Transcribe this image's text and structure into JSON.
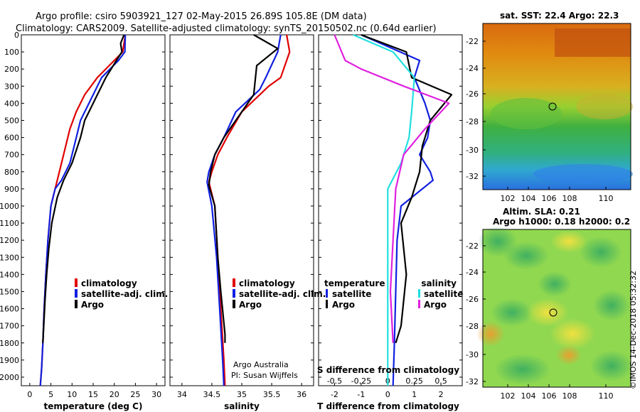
{
  "header": {
    "title_line1": "Argo profile: csiro 5903921_127 02-May-2015 26.89S 105.8E (DM data)",
    "title_line2": "Climatology: CARS2009. Satellite-adjusted climatology: synTS_20150502.nc (0.64d earlier)"
  },
  "colors": {
    "climatology": "#e00000",
    "satellite": "#1020e0",
    "argo": "#000000",
    "sat_salinity": "#20e0e0",
    "argo_salinity": "#e020e0"
  },
  "depth_axis": {
    "ticks": [
      "0",
      "100",
      "200",
      "300",
      "400",
      "500",
      "600",
      "700",
      "800",
      "900",
      "1000",
      "1100",
      "1200",
      "1300",
      "1400",
      "1500",
      "1600",
      "1700",
      "1800",
      "1900",
      "2000"
    ]
  },
  "chart_data": [
    {
      "type": "line",
      "xlabel": "temperature (deg C)",
      "xlim": [
        -2,
        32
      ],
      "ylim": [
        0,
        2050
      ],
      "xticks": [
        "0",
        "5",
        "10",
        "15",
        "20",
        "25",
        "30"
      ],
      "legend": [
        "climatology",
        "satellite-adj. clim.",
        "Argo"
      ],
      "series": [
        {
          "name": "climatology",
          "color": "#e00000",
          "x": [
            22.6,
            22,
            20,
            16,
            13,
            11,
            9.5,
            8.5,
            7,
            6,
            5,
            4.3,
            3.8,
            3.4,
            3.1,
            2.8,
            2.5
          ],
          "depth": [
            0,
            100,
            150,
            250,
            350,
            450,
            550,
            650,
            800,
            900,
            1000,
            1200,
            1400,
            1600,
            1800,
            1950,
            2050
          ]
        },
        {
          "name": "satellite-adj. clim.",
          "color": "#1020e0",
          "x": [
            22.6,
            22.5,
            21,
            17,
            14,
            12,
            10.5,
            9.5,
            7.5,
            6,
            5,
            4.3,
            3.8,
            3.4,
            3.1,
            2.8,
            2.5
          ],
          "depth": [
            0,
            100,
            150,
            250,
            400,
            500,
            650,
            750,
            850,
            900,
            1000,
            1200,
            1400,
            1600,
            1800,
            1950,
            2050
          ]
        },
        {
          "name": "Argo",
          "color": "#000000",
          "x": [
            22.3,
            21.5,
            21.8,
            20.5,
            18,
            15,
            13,
            12,
            10,
            8,
            6.5,
            5.2,
            4.5,
            4,
            3.6,
            3.3,
            3.1
          ],
          "depth": [
            0,
            50,
            100,
            150,
            250,
            400,
            500,
            600,
            750,
            850,
            950,
            1100,
            1250,
            1400,
            1550,
            1700,
            1800
          ]
        }
      ]
    },
    {
      "type": "line",
      "xlabel": "salinity",
      "xlim": [
        33.8,
        36.2
      ],
      "ylim": [
        0,
        2050
      ],
      "xticks": [
        "34",
        "34.5",
        "35",
        "35.5",
        "36"
      ],
      "legend": [
        "climatology",
        "satellite-adj. clim.",
        "Argo"
      ],
      "series": [
        {
          "name": "climatology",
          "color": "#e00000",
          "x": [
            35.75,
            35.8,
            35.65,
            35.45,
            35.0,
            34.75,
            34.6,
            34.5,
            34.45,
            34.55,
            34.6,
            34.65,
            34.7,
            34.72
          ],
          "depth": [
            0,
            100,
            250,
            300,
            450,
            600,
            700,
            800,
            860,
            1000,
            1300,
            1600,
            1900,
            2050
          ]
        },
        {
          "name": "satellite-adj. clim.",
          "color": "#1020e0",
          "x": [
            35.65,
            35.6,
            35.4,
            35.3,
            34.9,
            34.7,
            34.55,
            34.45,
            34.42,
            34.5,
            34.58,
            34.63,
            34.68,
            34.7
          ],
          "depth": [
            0,
            100,
            250,
            320,
            450,
            600,
            700,
            800,
            860,
            1000,
            1300,
            1600,
            1900,
            2050
          ]
        },
        {
          "name": "Argo",
          "color": "#000000",
          "x": [
            35.2,
            35.6,
            35.25,
            35.2,
            34.9,
            34.7,
            34.55,
            34.48,
            34.45,
            34.55,
            34.6,
            34.65,
            34.72,
            34.72
          ],
          "depth": [
            0,
            80,
            180,
            350,
            500,
            600,
            700,
            800,
            880,
            1000,
            1300,
            1500,
            1750,
            1800
          ]
        }
      ]
    },
    {
      "type": "line",
      "xlabel": "T difference from climatology",
      "xlabel_top": "S difference from climatology",
      "xlim": [
        -2.6,
        2.8
      ],
      "ylim": [
        0,
        2050
      ],
      "xticks": [
        "-2",
        "-1",
        "0",
        "1",
        "2"
      ],
      "xticks_top": [
        "-0.5",
        "-0.25",
        "0",
        "0.25",
        "0.5"
      ],
      "legend_left_title": "temperature",
      "legend_left": [
        "satellite",
        "Argo"
      ],
      "legend_right_title": "salinity",
      "legend_right": [
        "satellite",
        "Argo"
      ],
      "series": [
        {
          "name": "T satellite",
          "color": "#1020e0",
          "x": [
            -1,
            1.2,
            1.0,
            1.4,
            1.6,
            1.5,
            1.2,
            1.6,
            1.7,
            0.5,
            0.35,
            0.3,
            0.25,
            0.2
          ],
          "depth": [
            0,
            150,
            250,
            400,
            500,
            600,
            700,
            800,
            850,
            1000,
            1200,
            1500,
            1800,
            2050
          ]
        },
        {
          "name": "T Argo",
          "color": "#000000",
          "x": [
            -1,
            0.7,
            0.9,
            2.4,
            1.6,
            1.3,
            1.2,
            0.9,
            0.5,
            0.6,
            0.7,
            0.6,
            0.5,
            0.3
          ],
          "depth": [
            0,
            100,
            250,
            350,
            500,
            650,
            800,
            950,
            1100,
            1250,
            1400,
            1550,
            1700,
            1800
          ]
        },
        {
          "name": "S satellite",
          "color": "#20e0e0",
          "x": [
            -1.3,
            0.2,
            1.0,
            0.9,
            0.8,
            0.5,
            0.0,
            0.0,
            0.0,
            0.0
          ],
          "depth": [
            0,
            100,
            250,
            450,
            600,
            750,
            900,
            1200,
            1600,
            2050
          ]
        },
        {
          "name": "S Argo",
          "color": "#e020e0",
          "x": [
            -2.0,
            -1.6,
            -1.0,
            0.6,
            2.3,
            1.4,
            0.6,
            0.3,
            0.2,
            0.1,
            0.2
          ],
          "depth": [
            0,
            150,
            200,
            300,
            400,
            550,
            700,
            900,
            1200,
            1500,
            1800
          ]
        }
      ]
    }
  ],
  "maps": {
    "top": {
      "title": "sat. SST: 22.4 Argo: 22.3",
      "lat_ticks": [
        "-22",
        "-24",
        "-26",
        "-28",
        "-30",
        "-32"
      ],
      "lon_ticks": [
        "102",
        "104",
        "106",
        "108",
        "110"
      ]
    },
    "bottom": {
      "title1": "Altim. SLA: 0.21",
      "title2": "Argo h1000: 0.18 h2000: 0.2",
      "lat_ticks": [
        "-22",
        "-24",
        "-26",
        "-28",
        "-30",
        "-32"
      ],
      "lon_ticks": [
        "102",
        "104",
        "106",
        "108",
        "110"
      ]
    }
  },
  "credits": {
    "line1": "Argo Australia",
    "line2": "PI: Susan Wijffels",
    "stamp": "©IMOS 14-Dec-2018 05:32:32"
  }
}
